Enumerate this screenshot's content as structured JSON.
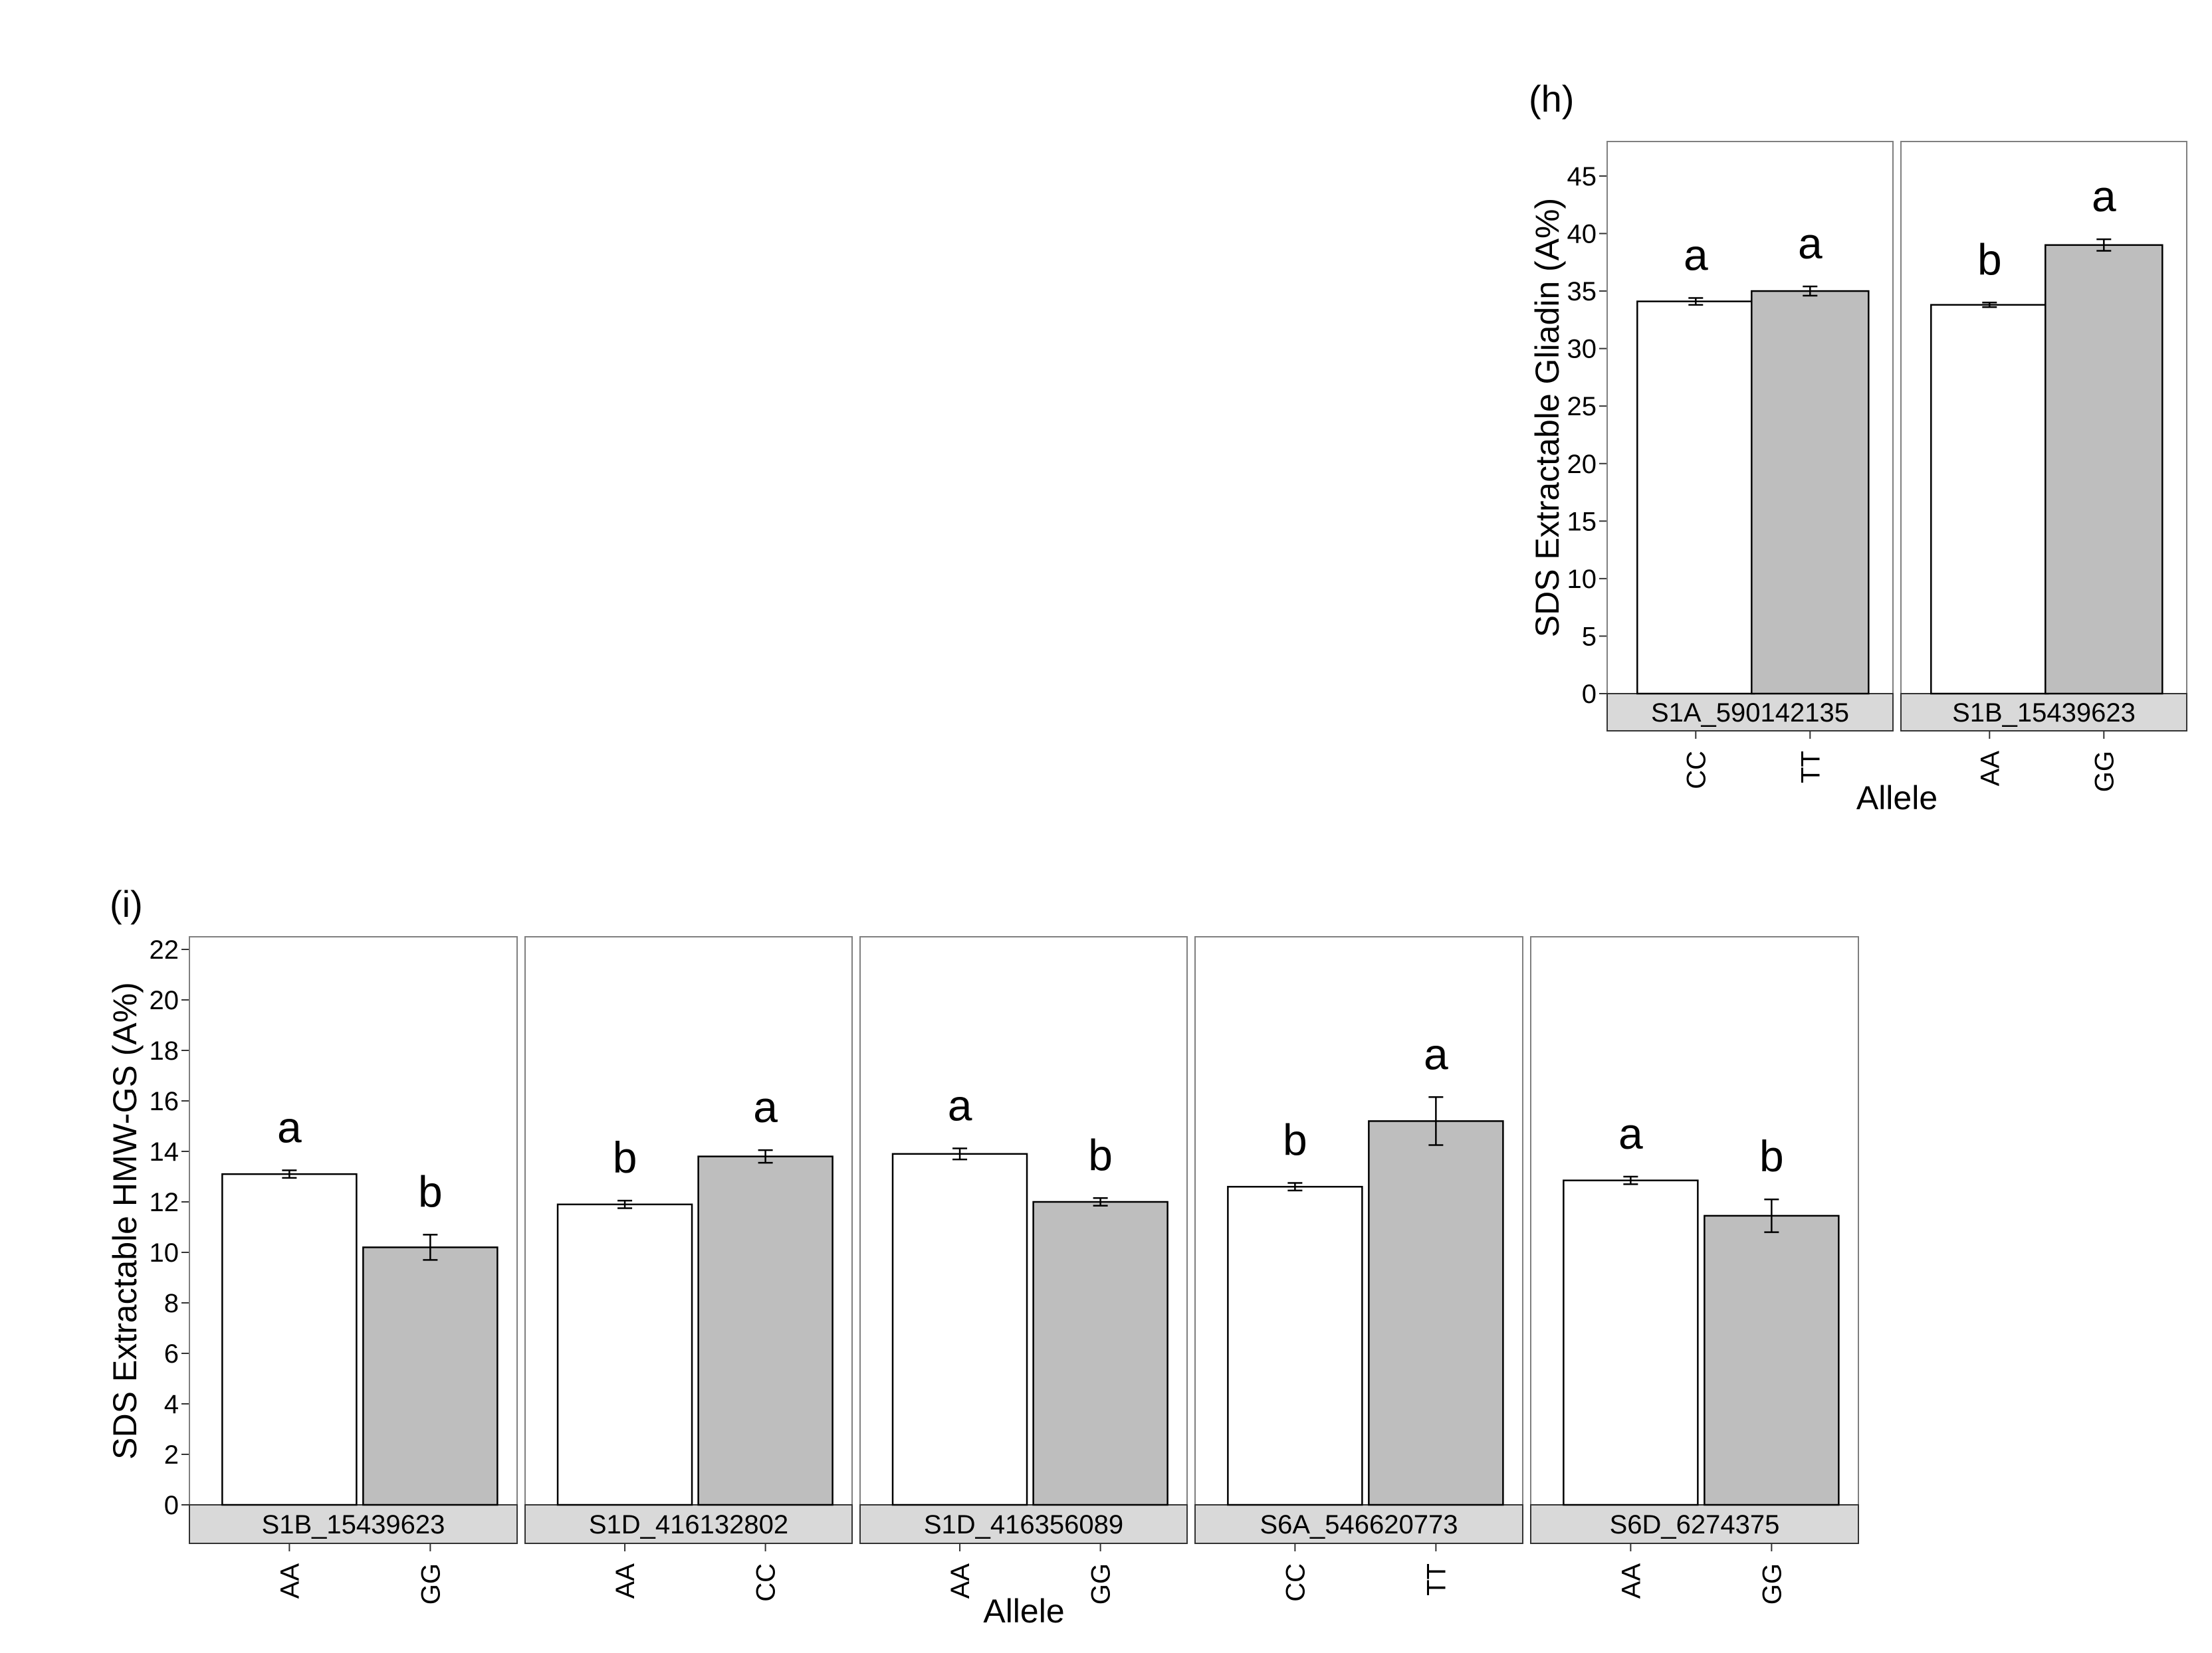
{
  "chart_data": [
    {
      "type": "bar",
      "panel_label": "(h)",
      "ylabel": "SDS Extractable Gliadin (A%)",
      "xlabel": "Allele",
      "ylim": [
        0,
        48
      ],
      "yticks": [
        0,
        5,
        10,
        15,
        20,
        25,
        30,
        35,
        40,
        45
      ],
      "facets": [
        {
          "name": "S1A_590142135",
          "bars": [
            {
              "allele": "CC",
              "value": 34.1,
              "se": 0.3,
              "letter": "a",
              "fill": "#ffffff"
            },
            {
              "allele": "TT",
              "value": 35.0,
              "se": 0.4,
              "letter": "a",
              "fill": "#bebebe"
            }
          ]
        },
        {
          "name": "S1B_15439623",
          "bars": [
            {
              "allele": "AA",
              "value": 33.8,
              "se": 0.2,
              "letter": "b",
              "fill": "#ffffff"
            },
            {
              "allele": "GG",
              "value": 39.0,
              "se": 0.5,
              "letter": "a",
              "fill": "#bebebe"
            }
          ]
        }
      ]
    },
    {
      "type": "bar",
      "panel_label": "(i)",
      "ylabel": "SDS Extractable HMW-GS (A%)",
      "xlabel": "Allele",
      "ylim": [
        0,
        22.5
      ],
      "yticks": [
        0,
        2,
        4,
        6,
        8,
        10,
        12,
        14,
        16,
        18,
        20,
        22
      ],
      "facets": [
        {
          "name": "S1B_15439623",
          "bars": [
            {
              "allele": "AA",
              "value": 13.1,
              "se": 0.15,
              "letter": "a",
              "fill": "#ffffff"
            },
            {
              "allele": "GG",
              "value": 10.2,
              "se": 0.5,
              "letter": "b",
              "fill": "#bebebe"
            }
          ]
        },
        {
          "name": "S1D_416132802",
          "bars": [
            {
              "allele": "AA",
              "value": 11.9,
              "se": 0.15,
              "letter": "b",
              "fill": "#ffffff"
            },
            {
              "allele": "CC",
              "value": 13.8,
              "se": 0.25,
              "letter": "a",
              "fill": "#bebebe"
            }
          ]
        },
        {
          "name": "S1D_416356089",
          "bars": [
            {
              "allele": "AA",
              "value": 13.9,
              "se": 0.22,
              "letter": "a",
              "fill": "#ffffff"
            },
            {
              "allele": "GG",
              "value": 12.0,
              "se": 0.15,
              "letter": "b",
              "fill": "#bebebe"
            }
          ]
        },
        {
          "name": "S6A_546620773",
          "bars": [
            {
              "allele": "CC",
              "value": 12.6,
              "se": 0.15,
              "letter": "b",
              "fill": "#ffffff"
            },
            {
              "allele": "TT",
              "value": 15.2,
              "se": 0.95,
              "letter": "a",
              "fill": "#bebebe"
            }
          ]
        },
        {
          "name": "S6D_6274375",
          "bars": [
            {
              "allele": "AA",
              "value": 12.85,
              "se": 0.15,
              "letter": "a",
              "fill": "#ffffff"
            },
            {
              "allele": "GG",
              "value": 11.45,
              "se": 0.65,
              "letter": "b",
              "fill": "#bebebe"
            }
          ]
        }
      ]
    }
  ]
}
